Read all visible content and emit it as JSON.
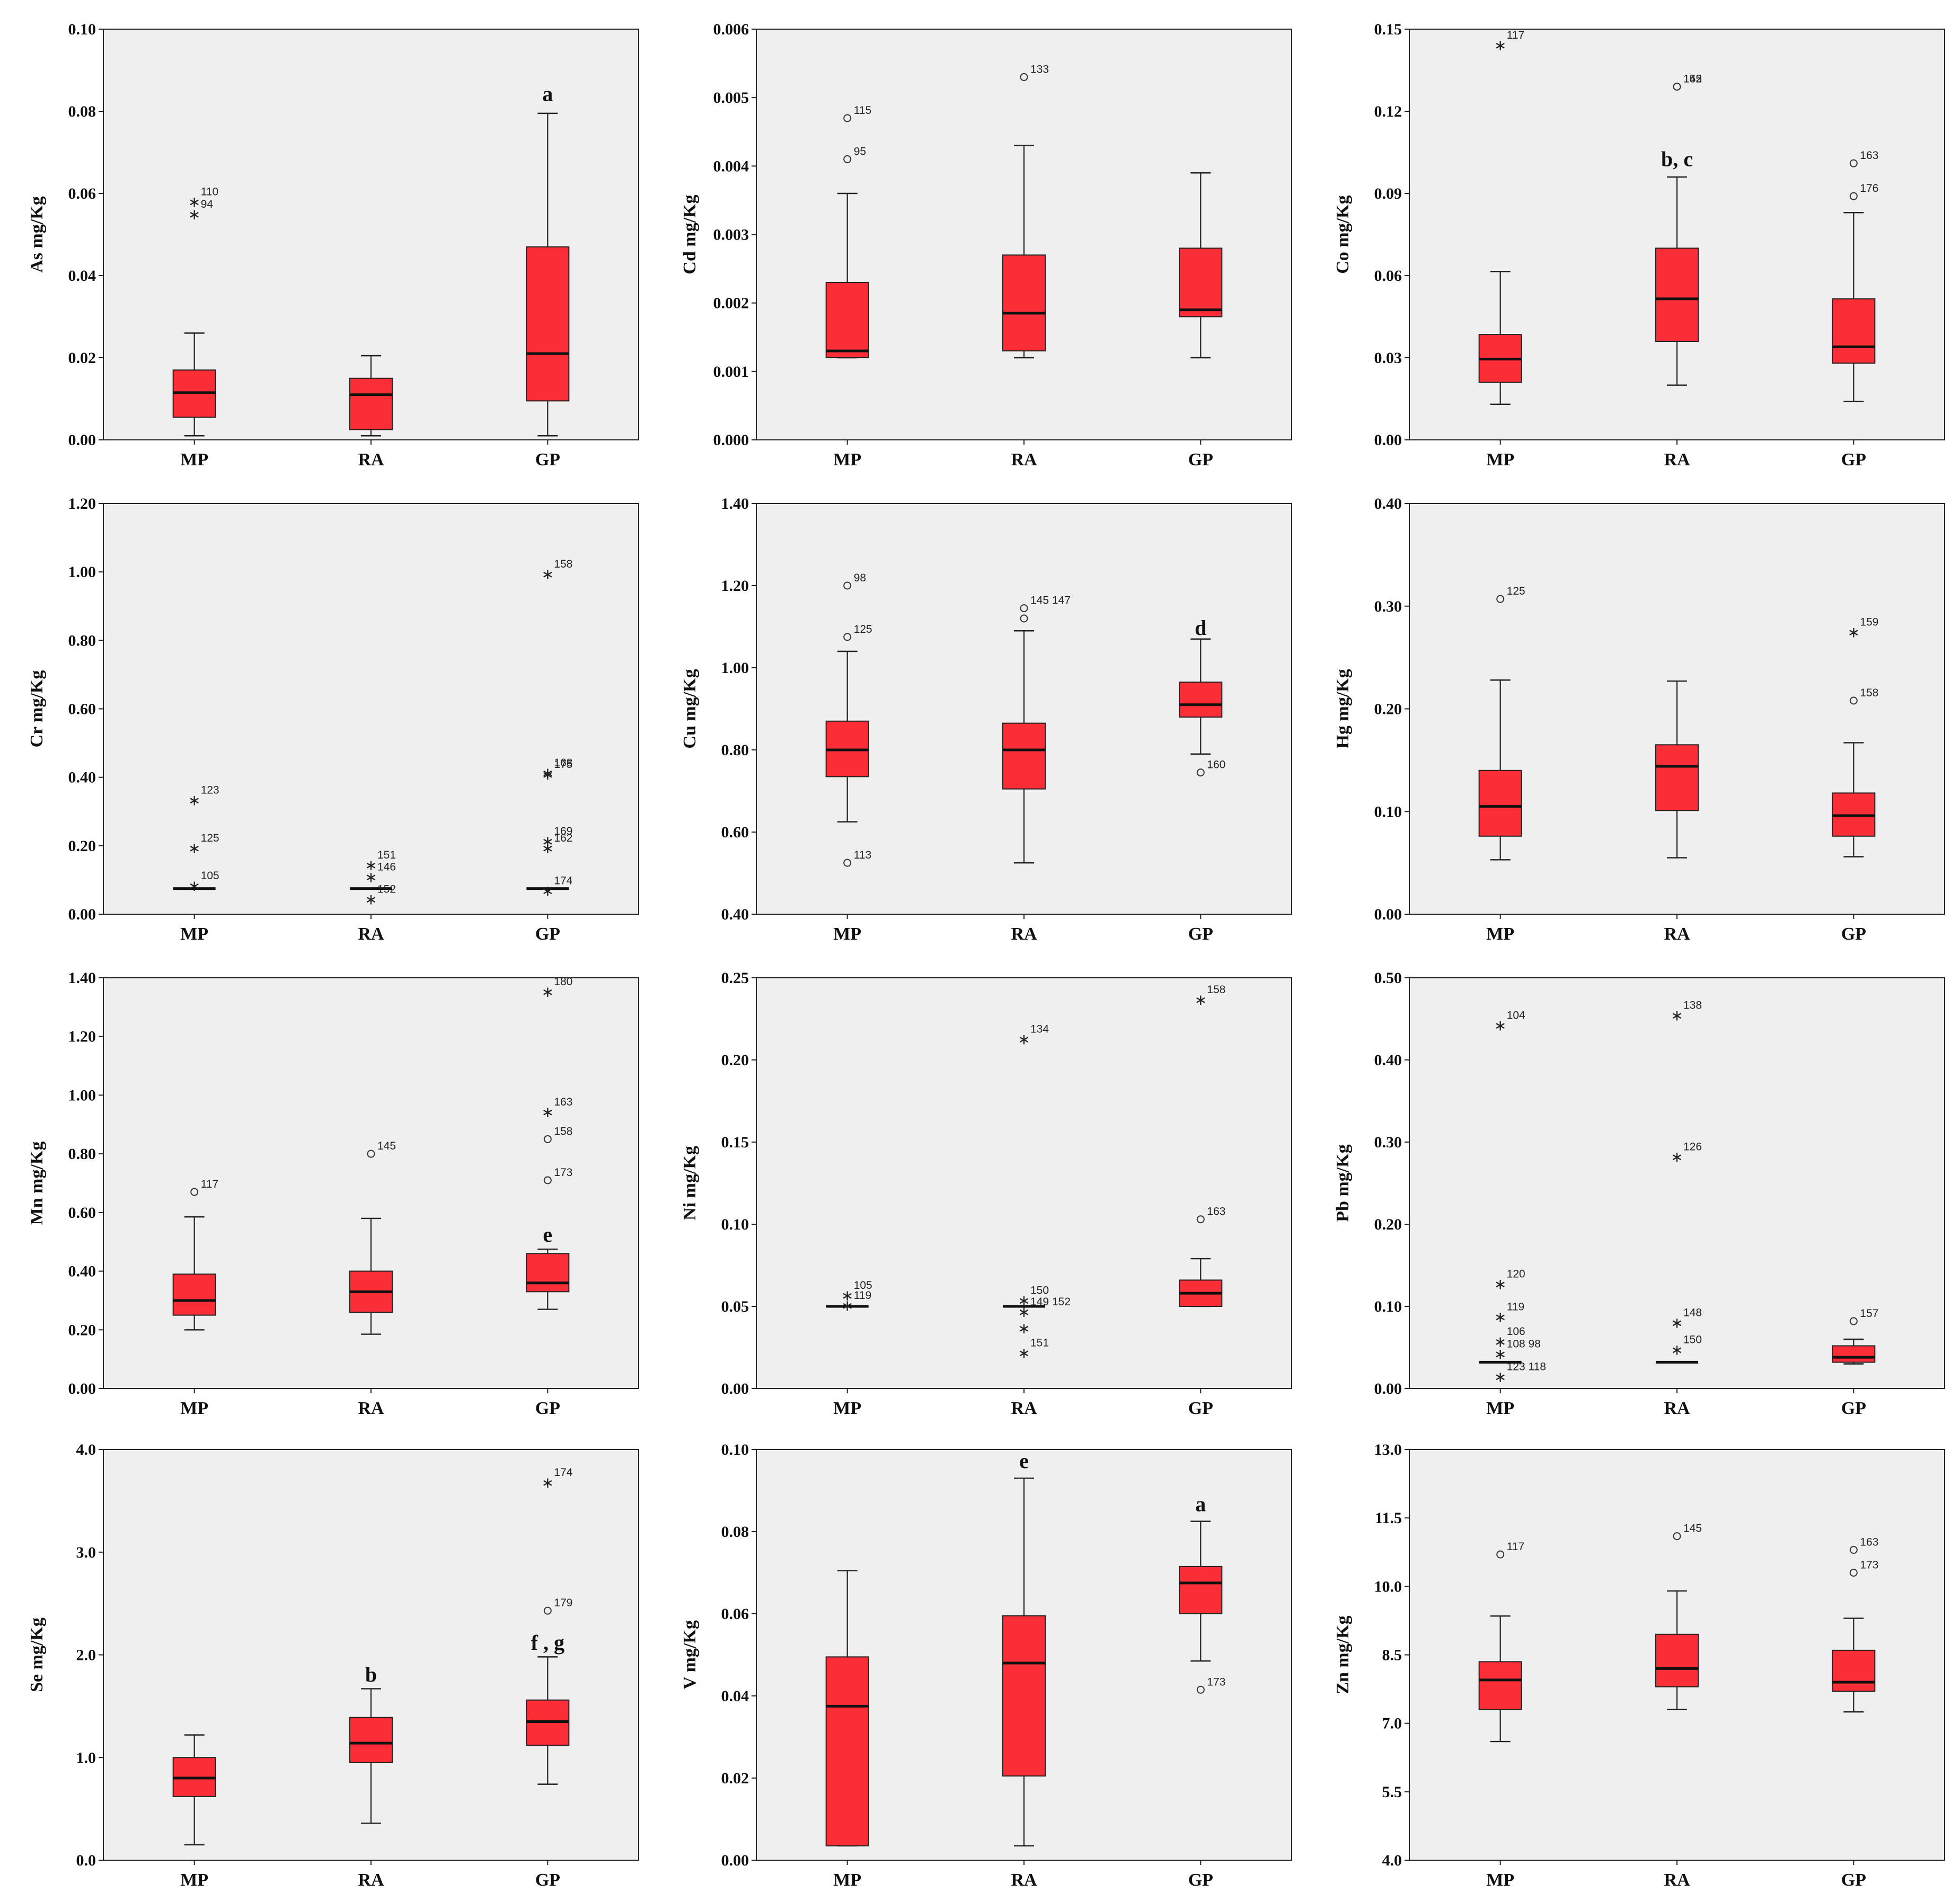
{
  "chart_data": [
    {
      "type": "box",
      "ylabel": "As mg/Kg",
      "ylim": [
        0,
        0.1
      ],
      "ticks": [
        "0.00",
        "0.02",
        "0.04",
        "0.06",
        "0.08",
        "0.10"
      ],
      "categories": [
        "MP",
        "RA",
        "GP"
      ],
      "boxes": [
        {
          "min": 0.001,
          "q1": 0.0055,
          "median": 0.0115,
          "q3": 0.017,
          "max": 0.026
        },
        {
          "min": 0.001,
          "q1": 0.0025,
          "median": 0.011,
          "q3": 0.015,
          "max": 0.0205
        },
        {
          "min": 0.001,
          "q1": 0.0095,
          "median": 0.021,
          "q3": 0.047,
          "max": 0.0795
        }
      ],
      "outliers": [
        {
          "cat": 0,
          "value": 0.0585,
          "kind": "star",
          "label": "110"
        },
        {
          "cat": 0,
          "value": 0.0555,
          "kind": "star",
          "label": "94"
        }
      ],
      "annotations": [
        {
          "cat": 2,
          "value": 0.0825,
          "text": "a"
        }
      ]
    },
    {
      "type": "box",
      "ylabel": "Cd mg/Kg",
      "ylim": [
        0,
        0.006
      ],
      "ticks": [
        "0.000",
        "0.001",
        "0.002",
        "0.003",
        "0.004",
        "0.005",
        "0.006"
      ],
      "categories": [
        "MP",
        "RA",
        "GP"
      ],
      "boxes": [
        {
          "min": 0.0012,
          "q1": 0.0012,
          "median": 0.0013,
          "q3": 0.0023,
          "max": 0.0036
        },
        {
          "min": 0.0012,
          "q1": 0.0013,
          "median": 0.00185,
          "q3": 0.0027,
          "max": 0.0043
        },
        {
          "min": 0.0012,
          "q1": 0.0018,
          "median": 0.0019,
          "q3": 0.0028,
          "max": 0.0039
        }
      ],
      "outliers": [
        {
          "cat": 0,
          "value": 0.0047,
          "kind": "circle",
          "label": "115"
        },
        {
          "cat": 0,
          "value": 0.0041,
          "kind": "circle",
          "label": "95"
        },
        {
          "cat": 1,
          "value": 0.0053,
          "kind": "circle",
          "label": "133"
        }
      ],
      "annotations": []
    },
    {
      "type": "box",
      "ylabel": "Co mg/Kg",
      "ylim": [
        0,
        0.15
      ],
      "ticks": [
        "0.00",
        "0.03",
        "0.06",
        "0.09",
        "0.12",
        "0.15"
      ],
      "categories": [
        "MP",
        "RA",
        "GP"
      ],
      "boxes": [
        {
          "min": 0.013,
          "q1": 0.021,
          "median": 0.0295,
          "q3": 0.0385,
          "max": 0.0615
        },
        {
          "min": 0.02,
          "q1": 0.036,
          "median": 0.0515,
          "q3": 0.07,
          "max": 0.096
        },
        {
          "min": 0.014,
          "q1": 0.028,
          "median": 0.034,
          "q3": 0.0515,
          "max": 0.083
        }
      ],
      "outliers": [
        {
          "cat": 0,
          "value": 0.145,
          "kind": "star",
          "label": "117"
        },
        {
          "cat": 1,
          "value": 0.129,
          "kind": "circle",
          "label": "145"
        },
        {
          "cat": 1,
          "value": 0.129,
          "kind": "circle",
          "label": "152"
        },
        {
          "cat": 2,
          "value": 0.101,
          "kind": "circle",
          "label": "163"
        },
        {
          "cat": 2,
          "value": 0.089,
          "kind": "circle",
          "label": "176"
        }
      ],
      "annotations": [
        {
          "cat": 1,
          "value": 0.1,
          "text": "b, c"
        }
      ]
    },
    {
      "type": "box",
      "ylabel": "Cr mg/Kg",
      "ylim": [
        0,
        1.2
      ],
      "ticks": [
        "0.00",
        "0.20",
        "0.40",
        "0.60",
        "0.80",
        "1.00",
        "1.20"
      ],
      "categories": [
        "MP",
        "RA",
        "GP"
      ],
      "boxes": [
        {
          "min": 0.075,
          "q1": 0.075,
          "median": 0.075,
          "q3": 0.075,
          "max": 0.075
        },
        {
          "min": 0.075,
          "q1": 0.075,
          "median": 0.075,
          "q3": 0.075,
          "max": 0.075
        },
        {
          "min": 0.075,
          "q1": 0.075,
          "median": 0.075,
          "q3": 0.075,
          "max": 0.075
        }
      ],
      "outliers": [
        {
          "cat": 0,
          "value": 0.34,
          "kind": "star",
          "label": "123"
        },
        {
          "cat": 0,
          "value": 0.2,
          "kind": "star",
          "label": "125"
        },
        {
          "cat": 0,
          "value": 0.09,
          "kind": "star",
          "label": "105"
        },
        {
          "cat": 1,
          "value": 0.15,
          "kind": "star",
          "label": "151"
        },
        {
          "cat": 1,
          "value": 0.115,
          "kind": "star",
          "label": "146"
        },
        {
          "cat": 1,
          "value": 0.05,
          "kind": "star",
          "label": "152"
        },
        {
          "cat": 2,
          "value": 1.0,
          "kind": "star",
          "label": "158"
        },
        {
          "cat": 2,
          "value": 0.42,
          "kind": "star",
          "label": "168"
        },
        {
          "cat": 2,
          "value": 0.415,
          "kind": "star",
          "label": "175"
        },
        {
          "cat": 2,
          "value": 0.22,
          "kind": "star",
          "label": "169"
        },
        {
          "cat": 2,
          "value": 0.2,
          "kind": "star",
          "label": "162"
        },
        {
          "cat": 2,
          "value": 0.075,
          "kind": "star",
          "label": "174"
        }
      ],
      "annotations": []
    },
    {
      "type": "box",
      "ylabel": "Cu mg/Kg",
      "ylim": [
        0.4,
        1.4
      ],
      "ticks": [
        "0.40",
        "0.60",
        "0.80",
        "1.00",
        "1.20",
        "1.40"
      ],
      "categories": [
        "MP",
        "RA",
        "GP"
      ],
      "boxes": [
        {
          "min": 0.625,
          "q1": 0.735,
          "median": 0.8,
          "q3": 0.87,
          "max": 1.04
        },
        {
          "min": 0.525,
          "q1": 0.705,
          "median": 0.8,
          "q3": 0.865,
          "max": 1.09
        },
        {
          "min": 0.79,
          "q1": 0.88,
          "median": 0.91,
          "q3": 0.965,
          "max": 1.07
        }
      ],
      "outliers": [
        {
          "cat": 0,
          "value": 1.2,
          "kind": "circle",
          "label": "98"
        },
        {
          "cat": 0,
          "value": 1.075,
          "kind": "circle",
          "label": "125"
        },
        {
          "cat": 0,
          "value": 0.525,
          "kind": "circle",
          "label": "113"
        },
        {
          "cat": 1,
          "value": 1.145,
          "kind": "circle",
          "label": "145 147"
        },
        {
          "cat": 1,
          "value": 1.12,
          "kind": "circle",
          "label": ""
        },
        {
          "cat": 2,
          "value": 0.745,
          "kind": "circle",
          "label": "160"
        }
      ],
      "annotations": [
        {
          "cat": 2,
          "value": 1.08,
          "text": "d"
        }
      ]
    },
    {
      "type": "box",
      "ylabel": "Hg mg/Kg",
      "ylim": [
        0,
        0.4
      ],
      "ticks": [
        "0.00",
        "0.10",
        "0.20",
        "0.30",
        "0.40"
      ],
      "categories": [
        "MP",
        "RA",
        "GP"
      ],
      "boxes": [
        {
          "min": 0.053,
          "q1": 0.076,
          "median": 0.105,
          "q3": 0.14,
          "max": 0.228
        },
        {
          "min": 0.055,
          "q1": 0.101,
          "median": 0.144,
          "q3": 0.165,
          "max": 0.227
        },
        {
          "min": 0.056,
          "q1": 0.076,
          "median": 0.096,
          "q3": 0.118,
          "max": 0.167
        }
      ],
      "outliers": [
        {
          "cat": 0,
          "value": 0.307,
          "kind": "circle",
          "label": "125"
        },
        {
          "cat": 2,
          "value": 0.277,
          "kind": "star",
          "label": "159"
        },
        {
          "cat": 2,
          "value": 0.208,
          "kind": "circle",
          "label": "158"
        }
      ],
      "annotations": []
    },
    {
      "type": "box",
      "ylabel": "Mn mg/Kg",
      "ylim": [
        0,
        1.4
      ],
      "ticks": [
        "0.00",
        "0.20",
        "0.40",
        "0.60",
        "0.80",
        "1.00",
        "1.20",
        "1.40"
      ],
      "categories": [
        "MP",
        "RA",
        "GP"
      ],
      "boxes": [
        {
          "min": 0.2,
          "q1": 0.25,
          "median": 0.3,
          "q3": 0.39,
          "max": 0.585
        },
        {
          "min": 0.185,
          "q1": 0.26,
          "median": 0.33,
          "q3": 0.4,
          "max": 0.58
        },
        {
          "min": 0.27,
          "q1": 0.33,
          "median": 0.36,
          "q3": 0.46,
          "max": 0.475
        }
      ],
      "outliers": [
        {
          "cat": 0,
          "value": 0.67,
          "kind": "circle",
          "label": "117"
        },
        {
          "cat": 1,
          "value": 0.8,
          "kind": "circle",
          "label": "145"
        },
        {
          "cat": 2,
          "value": 1.36,
          "kind": "star",
          "label": "180"
        },
        {
          "cat": 2,
          "value": 0.95,
          "kind": "star",
          "label": "163"
        },
        {
          "cat": 2,
          "value": 0.85,
          "kind": "circle",
          "label": "158"
        },
        {
          "cat": 2,
          "value": 0.71,
          "kind": "circle",
          "label": "173"
        }
      ],
      "annotations": [
        {
          "cat": 2,
          "value": 0.5,
          "text": "e"
        }
      ]
    },
    {
      "type": "box",
      "ylabel": "Ni mg/Kg",
      "ylim": [
        0,
        0.25
      ],
      "ticks": [
        "0.00",
        "0.05",
        "0.10",
        "0.15",
        "0.20",
        "0.25"
      ],
      "categories": [
        "MP",
        "RA",
        "GP"
      ],
      "boxes": [
        {
          "min": 0.05,
          "q1": 0.05,
          "median": 0.05,
          "q3": 0.05,
          "max": 0.05
        },
        {
          "min": 0.05,
          "q1": 0.05,
          "median": 0.05,
          "q3": 0.05,
          "max": 0.05
        },
        {
          "min": 0.05,
          "q1": 0.05,
          "median": 0.058,
          "q3": 0.066,
          "max": 0.079
        }
      ],
      "outliers": [
        {
          "cat": 0,
          "value": 0.058,
          "kind": "star",
          "label": "105"
        },
        {
          "cat": 0,
          "value": 0.052,
          "kind": "star",
          "label": "119"
        },
        {
          "cat": 1,
          "value": 0.214,
          "kind": "star",
          "label": "134"
        },
        {
          "cat": 1,
          "value": 0.055,
          "kind": "star",
          "label": "150"
        },
        {
          "cat": 1,
          "value": 0.048,
          "kind": "star",
          "label": "149 152"
        },
        {
          "cat": 1,
          "value": 0.038,
          "kind": "star",
          "label": ""
        },
        {
          "cat": 1,
          "value": 0.023,
          "kind": "star",
          "label": "151"
        },
        {
          "cat": 2,
          "value": 0.238,
          "kind": "star",
          "label": "158"
        },
        {
          "cat": 2,
          "value": 0.103,
          "kind": "circle",
          "label": "163"
        }
      ],
      "annotations": []
    },
    {
      "type": "box",
      "ylabel": "Pb mg/Kg",
      "ylim": [
        0,
        0.5
      ],
      "ticks": [
        "0.00",
        "0.10",
        "0.20",
        "0.30",
        "0.40",
        "0.50"
      ],
      "categories": [
        "MP",
        "RA",
        "GP"
      ],
      "boxes": [
        {
          "min": 0.032,
          "q1": 0.032,
          "median": 0.032,
          "q3": 0.032,
          "max": 0.032
        },
        {
          "min": 0.032,
          "q1": 0.032,
          "median": 0.032,
          "q3": 0.032,
          "max": 0.032
        },
        {
          "min": 0.03,
          "q1": 0.032,
          "median": 0.038,
          "q3": 0.052,
          "max": 0.06
        }
      ],
      "outliers": [
        {
          "cat": 0,
          "value": 0.445,
          "kind": "star",
          "label": "104"
        },
        {
          "cat": 0,
          "value": 0.13,
          "kind": "star",
          "label": "120"
        },
        {
          "cat": 0,
          "value": 0.09,
          "kind": "star",
          "label": "119"
        },
        {
          "cat": 0,
          "value": 0.06,
          "kind": "star",
          "label": "106"
        },
        {
          "cat": 0,
          "value": 0.045,
          "kind": "star",
          "label": "108 98"
        },
        {
          "cat": 0,
          "value": 0.017,
          "kind": "star",
          "label": "123 118"
        },
        {
          "cat": 1,
          "value": 0.457,
          "kind": "star",
          "label": "138"
        },
        {
          "cat": 1,
          "value": 0.285,
          "kind": "star",
          "label": "126"
        },
        {
          "cat": 1,
          "value": 0.083,
          "kind": "star",
          "label": "148"
        },
        {
          "cat": 1,
          "value": 0.05,
          "kind": "star",
          "label": "150"
        },
        {
          "cat": 2,
          "value": 0.082,
          "kind": "circle",
          "label": "157"
        }
      ],
      "annotations": []
    },
    {
      "type": "box",
      "ylabel": "Se mg/Kg",
      "ylim": [
        0,
        4.0
      ],
      "ticks": [
        "0.0",
        "1.0",
        "2.0",
        "3.0",
        "4.0"
      ],
      "categories": [
        "MP",
        "RA",
        "GP"
      ],
      "boxes": [
        {
          "min": 0.15,
          "q1": 0.62,
          "median": 0.8,
          "q3": 1.0,
          "max": 1.22
        },
        {
          "min": 0.36,
          "q1": 0.95,
          "median": 1.14,
          "q3": 1.39,
          "max": 1.67
        },
        {
          "min": 0.74,
          "q1": 1.12,
          "median": 1.35,
          "q3": 1.56,
          "max": 1.98
        }
      ],
      "outliers": [
        {
          "cat": 2,
          "value": 3.7,
          "kind": "star",
          "label": "174"
        },
        {
          "cat": 2,
          "value": 2.43,
          "kind": "circle",
          "label": "179"
        }
      ],
      "annotations": [
        {
          "cat": 1,
          "value": 1.74,
          "text": "b"
        },
        {
          "cat": 2,
          "value": 2.05,
          "text": "f , g"
        }
      ]
    },
    {
      "type": "box",
      "ylabel": "V mg/Kg",
      "ylim": [
        0,
        0.1
      ],
      "ticks": [
        "0.00",
        "0.02",
        "0.04",
        "0.06",
        "0.08",
        "0.10"
      ],
      "categories": [
        "MP",
        "RA",
        "GP"
      ],
      "boxes": [
        {
          "min": 0.0035,
          "q1": 0.0035,
          "median": 0.0375,
          "q3": 0.0495,
          "max": 0.0705
        },
        {
          "min": 0.0035,
          "q1": 0.0205,
          "median": 0.048,
          "q3": 0.0595,
          "max": 0.093
        },
        {
          "min": 0.0485,
          "q1": 0.06,
          "median": 0.0675,
          "q3": 0.0715,
          "max": 0.0825
        }
      ],
      "outliers": [
        {
          "cat": 2,
          "value": 0.0415,
          "kind": "circle",
          "label": "173"
        }
      ],
      "annotations": [
        {
          "cat": 1,
          "value": 0.0955,
          "text": "e"
        },
        {
          "cat": 2,
          "value": 0.085,
          "text": "a"
        }
      ]
    },
    {
      "type": "box",
      "ylabel": "Zn mg/Kg",
      "ylim": [
        4,
        13
      ],
      "ticks": [
        "4.0",
        "5.5",
        "7.0",
        "8.5",
        "10.0",
        "11.5",
        "13.0"
      ],
      "categories": [
        "MP",
        "RA",
        "GP"
      ],
      "boxes": [
        {
          "min": 6.6,
          "q1": 7.3,
          "median": 7.95,
          "q3": 8.35,
          "max": 9.35
        },
        {
          "min": 7.3,
          "q1": 7.8,
          "median": 8.2,
          "q3": 8.95,
          "max": 9.9
        },
        {
          "min": 7.25,
          "q1": 7.7,
          "median": 7.9,
          "q3": 8.6,
          "max": 9.3
        }
      ],
      "outliers": [
        {
          "cat": 0,
          "value": 10.7,
          "kind": "circle",
          "label": "117"
        },
        {
          "cat": 1,
          "value": 11.1,
          "kind": "circle",
          "label": "145"
        },
        {
          "cat": 2,
          "value": 10.8,
          "kind": "circle",
          "label": "163"
        },
        {
          "cat": 2,
          "value": 10.3,
          "kind": "circle",
          "label": "173"
        }
      ],
      "annotations": []
    }
  ]
}
